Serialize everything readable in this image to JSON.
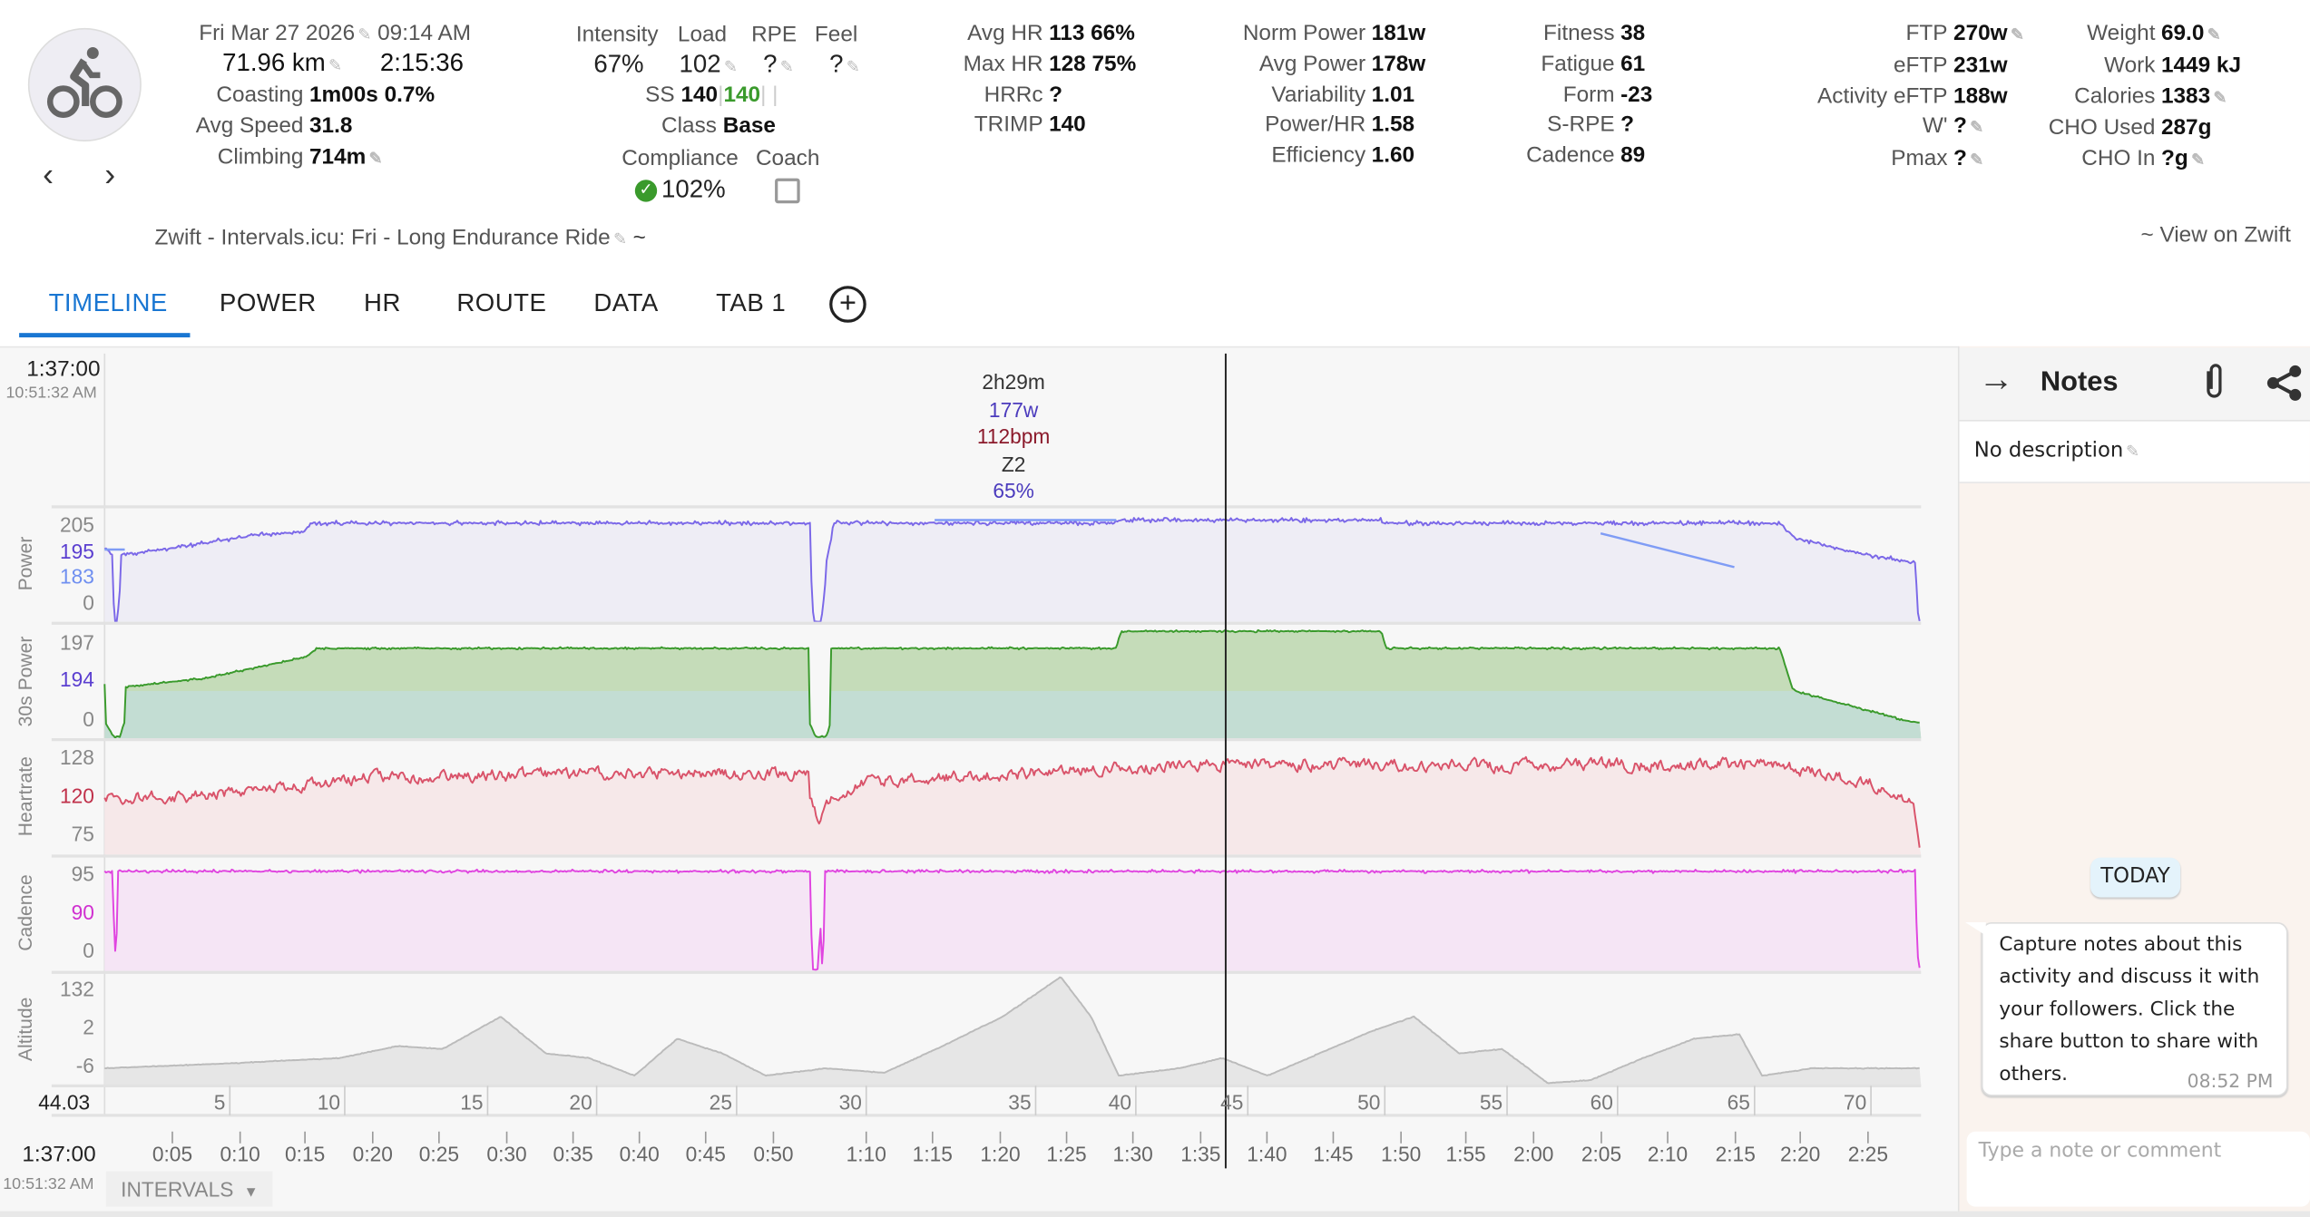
{
  "header": {
    "date": "Fri Mar 27 2026",
    "time": "09:14 AM",
    "distance": "71.96 km",
    "duration": "2:15:36",
    "left_stats": [
      {
        "label": "Coasting",
        "value": "1m00s 0.7%"
      },
      {
        "label": "Avg Speed",
        "value": "31.8"
      },
      {
        "label": "Climbing",
        "value": "714m"
      }
    ],
    "load_headers": [
      "Intensity",
      "Load",
      "RPE",
      "Feel"
    ],
    "load_values": [
      "67%",
      "102",
      "?",
      "?"
    ],
    "ss_label": "SS",
    "ss_value": "140",
    "ss_value2": "140",
    "class_label": "Class",
    "class_value": "Base",
    "compliance_label": "Compliance",
    "coach_label": "Coach",
    "compliance_value": "102%",
    "hr_stats": [
      {
        "label": "Avg HR",
        "value": "113 66%"
      },
      {
        "label": "Max HR",
        "value": "128 75%"
      },
      {
        "label": "HRRc",
        "value": "?"
      },
      {
        "label": "TRIMP",
        "value": "140"
      }
    ],
    "power_stats": [
      {
        "label": "Norm Power",
        "value": "181w"
      },
      {
        "label": "Avg Power",
        "value": "178w"
      },
      {
        "label": "Variability",
        "value": "1.01"
      },
      {
        "label": "Power/HR",
        "value": "1.58"
      },
      {
        "label": "Efficiency",
        "value": "1.60"
      }
    ],
    "fitness_stats": [
      {
        "label": "Fitness",
        "value": "38"
      },
      {
        "label": "Fatigue",
        "value": "61"
      },
      {
        "label": "Form",
        "value": "-23"
      },
      {
        "label": "S-RPE",
        "value": "?"
      },
      {
        "label": "Cadence",
        "value": "89"
      }
    ],
    "ftp_stats": [
      {
        "label": "FTP",
        "value": "270w"
      },
      {
        "label": "eFTP",
        "value": "231w"
      },
      {
        "label": "Activity eFTP",
        "value": "188w"
      },
      {
        "label": "W'",
        "value": "?"
      },
      {
        "label": "Pmax",
        "value": "?"
      }
    ],
    "body_stats": [
      {
        "label": "Weight",
        "value": "69.0"
      },
      {
        "label": "Work",
        "value": "1449 kJ"
      },
      {
        "label": "Calories",
        "value": "1383"
      },
      {
        "label": "CHO Used",
        "value": "287g"
      },
      {
        "label": "CHO In",
        "value": "?g"
      }
    ],
    "activity_name": "Zwift - Intervals.icu: Fri - Long Endurance Ride",
    "tilde": "~",
    "view_link": "~ View on Zwift"
  },
  "tabs": [
    "TIMELINE",
    "POWER",
    "HR",
    "ROUTE",
    "DATA",
    "TAB 1"
  ],
  "active_tab": "TIMELINE",
  "cursor": {
    "time": "1:37:00",
    "clock": "10:51:32 AM",
    "distance": "44.03",
    "summary": [
      "2h29m",
      "177w",
      "112bpm",
      "Z2",
      "65%"
    ]
  },
  "colors": {
    "accent": "#1976d2",
    "power": "#7b68e8",
    "power30": "#3a9a2c",
    "hr": "#d9536a",
    "cadence": "#e045e0",
    "altitude": "#bbbbbb"
  },
  "chart_data": {
    "type": "line",
    "x_unit": "km",
    "xlim": [
      0,
      72
    ],
    "distance_ticks": [
      "5",
      "10",
      "15",
      "20",
      "25",
      "30",
      "35",
      "40",
      "45",
      "50",
      "55",
      "60",
      "65",
      "70"
    ],
    "time_ticks": [
      "0:05",
      "0:10",
      "0:15",
      "0:20",
      "0:25",
      "0:30",
      "0:35",
      "0:40",
      "0:45",
      "0:50",
      "1:10",
      "1:15",
      "1:20",
      "1:25",
      "1:30",
      "1:35",
      "1:40",
      "1:45",
      "1:50",
      "1:55",
      "2:00",
      "2:05",
      "2:10",
      "2:15",
      "2:20",
      "2:25"
    ],
    "panels": [
      {
        "name": "Power",
        "ticks": [
          "205",
          "195",
          "183",
          "0"
        ],
        "series": [
          {
            "name": "power",
            "knots": [
              [
                0,
                197
              ],
              [
                0.3,
                194
              ],
              [
                0.4,
                0
              ],
              [
                0.5,
                0
              ],
              [
                0.65,
                194
              ],
              [
                3,
                197
              ],
              [
                6,
                201
              ],
              [
                7.9,
                202
              ],
              [
                8.2,
                205
              ],
              [
                28.0,
                205
              ],
              [
                28.1,
                0
              ],
              [
                28.4,
                0
              ],
              [
                28.6,
                190
              ],
              [
                28.9,
                205
              ],
              [
                40.1,
                205
              ],
              [
                40.2,
                206
              ],
              [
                50.6,
                206
              ],
              [
                50.7,
                205
              ],
              [
                66.4,
                205
              ],
              [
                67,
                200
              ],
              [
                71.8,
                190
              ],
              [
                71.9,
                0
              ]
            ]
          },
          {
            "name": "target",
            "segments": [
              [
                [
                  0,
                  196
                ],
                [
                  0.8,
                  196
                ]
              ],
              [
                [
                  32.9,
                  206
                ],
                [
                  40.1,
                  206
                ]
              ],
              [
                [
                  59.3,
                  201.5
                ],
                [
                  64.6,
                  188
                ]
              ]
            ]
          }
        ]
      },
      {
        "name": "30s Power",
        "ticks": [
          "197",
          "194",
          "0"
        ],
        "series": [
          {
            "name": "power30",
            "knots": [
              [
                0,
                194.5
              ],
              [
                0.35,
                0
              ],
              [
                0.6,
                0
              ],
              [
                0.8,
                194.3
              ],
              [
                4,
                194.9
              ],
              [
                8,
                196.4
              ],
              [
                8.4,
                197
              ],
              [
                27.9,
                197
              ],
              [
                28.2,
                0
              ],
              [
                28.6,
                0
              ],
              [
                28.8,
                197
              ],
              [
                40.1,
                197
              ],
              [
                40.3,
                198.2
              ],
              [
                50.6,
                198.2
              ],
              [
                50.8,
                197
              ],
              [
                66.4,
                197
              ],
              [
                66.9,
                194.2
              ],
              [
                71.6,
                185
              ],
              [
                71.9,
                180
              ]
            ]
          }
        ]
      },
      {
        "name": "Heartrate",
        "ticks": [
          "128",
          "120",
          "75"
        ],
        "series": [
          {
            "name": "hr",
            "knots": [
              [
                0,
                119
              ],
              [
                5,
                121
              ],
              [
                10,
                124
              ],
              [
                20,
                125
              ],
              [
                27.9,
                125
              ],
              [
                28.3,
                92
              ],
              [
                28.8,
                118
              ],
              [
                30,
                123
              ],
              [
                40,
                126
              ],
              [
                45,
                127
              ],
              [
                55,
                126.5
              ],
              [
                66,
                127
              ],
              [
                70,
                123
              ],
              [
                71.7,
                118
              ],
              [
                72,
                60
              ]
            ]
          }
        ]
      },
      {
        "name": "Cadence",
        "ticks": [
          "95",
          "90",
          "0"
        ],
        "series": [
          {
            "name": "cadence",
            "knots": [
              [
                0,
                95.5
              ],
              [
                0.35,
                95.5
              ],
              [
                0.45,
                0
              ],
              [
                0.5,
                95.5
              ],
              [
                28.0,
                95.5
              ],
              [
                28.05,
                0
              ],
              [
                28.3,
                0
              ],
              [
                28.35,
                95.5
              ],
              [
                28.45,
                0
              ],
              [
                28.55,
                95.5
              ],
              [
                71.8,
                95.5
              ],
              [
                71.9,
                0
              ]
            ]
          }
        ]
      },
      {
        "name": "Altitude",
        "ticks": [
          "132",
          "2",
          "-6"
        ],
        "series": [
          {
            "name": "altitude",
            "knots": [
              [
                0,
                -9
              ],
              [
                4.6,
                -1
              ],
              [
                9.3,
                9
              ],
              [
                11.6,
                30
              ],
              [
                13.4,
                25
              ],
              [
                15.7,
                82
              ],
              [
                17.5,
                17
              ],
              [
                19.2,
                9
              ],
              [
                21,
                -22
              ],
              [
                22.7,
                43
              ],
              [
                24.5,
                17
              ],
              [
                26.2,
                -22
              ],
              [
                28.6,
                -9
              ],
              [
                30.9,
                -17
              ],
              [
                33.2,
                30
              ],
              [
                35.6,
                82
              ],
              [
                37.9,
                152
              ],
              [
                39.1,
                82
              ],
              [
                40.2,
                -22
              ],
              [
                42.6,
                -9
              ],
              [
                44.3,
                9
              ],
              [
                46.1,
                -22
              ],
              [
                48.4,
                22
              ],
              [
                50.2,
                56
              ],
              [
                51.9,
                82
              ],
              [
                53.7,
                17
              ],
              [
                55.4,
                25
              ],
              [
                57.2,
                -35
              ],
              [
                58.9,
                -30
              ],
              [
                60.7,
                4
              ],
              [
                63,
                43
              ],
              [
                64.8,
                51
              ],
              [
                65.7,
                -22
              ],
              [
                67.7,
                -9
              ],
              [
                72,
                -9
              ]
            ]
          }
        ]
      }
    ]
  },
  "intervals_button": "INTERVALS",
  "notes": {
    "title": "Notes",
    "description": "No description",
    "day_label": "TODAY",
    "message": "Capture notes about this activity and discuss it with your followers. Click the share button to share with others.",
    "message_time": "08:52 PM",
    "input_placeholder": "Type a note or comment"
  }
}
